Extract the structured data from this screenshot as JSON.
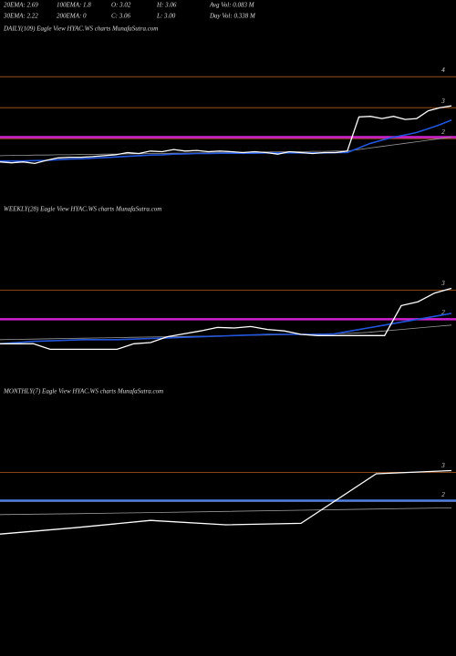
{
  "header": {
    "row1": [
      "20EMA: 2.69",
      "100EMA: 1.8",
      "O: 3.02",
      "H: 3.06",
      "Avg Vol: 0.083 M"
    ],
    "row2": [
      "30EMA: 2.22",
      "200EMA: 0",
      "C: 3.06",
      "L: 3.00",
      "Day Vol: 0.338 M"
    ]
  },
  "chart_data": [
    {
      "type": "line",
      "title": "DAILY(109) Eagle  View  HYAC.WS charts MunafaSutra.com",
      "categories": [
        null,
        null,
        null,
        null,
        null,
        null,
        null,
        null,
        null,
        null,
        null,
        null,
        null,
        null,
        null,
        null,
        null,
        null,
        null,
        null,
        null,
        null,
        null,
        null,
        null,
        null,
        null,
        null,
        null,
        null,
        null,
        null,
        null,
        null,
        null,
        null,
        null,
        null,
        null,
        null
      ],
      "ylim": [
        0,
        5.3
      ],
      "yticks": [
        4,
        3,
        2
      ],
      "grid": true,
      "grid_color": "#b05a1e",
      "hlines": [
        {
          "value": 2.05,
          "color": "#d020d0"
        }
      ],
      "series": [
        {
          "color": "#999999",
          "values": [
            1.45,
            1.46,
            1.46,
            1.47,
            1.47,
            1.48,
            1.48,
            1.49,
            1.49,
            1.5,
            1.5,
            1.51,
            1.51,
            1.52,
            1.52,
            1.53,
            1.53,
            1.54,
            1.54,
            1.55,
            1.55,
            1.56,
            1.56,
            1.57,
            1.57,
            1.58,
            1.58,
            1.59,
            1.59,
            1.6,
            1.6,
            1.65,
            1.7,
            1.75,
            1.8,
            1.85,
            1.9,
            1.95,
            2.0,
            2.05
          ]
        },
        {
          "color": "#2255dd",
          "values": [
            1.28,
            1.28,
            1.28,
            1.29,
            1.3,
            1.32,
            1.34,
            1.35,
            1.37,
            1.39,
            1.41,
            1.43,
            1.45,
            1.47,
            1.48,
            1.5,
            1.51,
            1.52,
            1.52,
            1.53,
            1.53,
            1.53,
            1.53,
            1.54,
            1.54,
            1.54,
            1.54,
            1.54,
            1.54,
            1.55,
            1.55,
            1.7,
            1.85,
            1.95,
            2.05,
            2.12,
            2.2,
            2.32,
            2.45,
            2.6
          ]
        },
        {
          "color": "#ffffff",
          "values": [
            1.25,
            1.22,
            1.25,
            1.2,
            1.3,
            1.38,
            1.4,
            1.4,
            1.42,
            1.45,
            1.48,
            1.55,
            1.52,
            1.6,
            1.58,
            1.65,
            1.6,
            1.62,
            1.58,
            1.6,
            1.58,
            1.55,
            1.58,
            1.55,
            1.5,
            1.58,
            1.55,
            1.52,
            1.55,
            1.55,
            1.6,
            2.7,
            2.72,
            2.65,
            2.72,
            2.62,
            2.65,
            2.9,
            3.0,
            3.06
          ]
        }
      ]
    },
    {
      "type": "line",
      "title": "WEEKLY(28) Eagle  View  HYAC.WS charts MunafaSutra.com",
      "categories": [
        null,
        null,
        null,
        null,
        null,
        null,
        null,
        null,
        null,
        null,
        null,
        null,
        null,
        null,
        null,
        null,
        null,
        null,
        null,
        null,
        null,
        null,
        null,
        null,
        null,
        null,
        null,
        null
      ],
      "ylim": [
        0,
        4.2
      ],
      "yticks": [
        3,
        2
      ],
      "grid": true,
      "grid_color": "#b05a1e",
      "hlines": [
        {
          "value": 2.0,
          "color": "#d020d0"
        }
      ],
      "series": [
        {
          "color": "#999999",
          "values": [
            1.3,
            1.31,
            1.32,
            1.33,
            1.34,
            1.35,
            1.36,
            1.37,
            1.38,
            1.39,
            1.4,
            1.41,
            1.42,
            1.43,
            1.44,
            1.45,
            1.46,
            1.47,
            1.48,
            1.49,
            1.5,
            1.52,
            1.55,
            1.6,
            1.65,
            1.7,
            1.75,
            1.8
          ]
        },
        {
          "color": "#2255dd",
          "values": [
            1.16,
            1.2,
            1.24,
            1.26,
            1.28,
            1.3,
            1.3,
            1.3,
            1.32,
            1.34,
            1.36,
            1.38,
            1.4,
            1.42,
            1.44,
            1.46,
            1.48,
            1.48,
            1.48,
            1.48,
            1.5,
            1.6,
            1.7,
            1.8,
            1.9,
            2.0,
            2.1,
            2.2
          ]
        },
        {
          "color": "#ffffff",
          "values": [
            1.16,
            1.16,
            1.16,
            0.97,
            0.97,
            0.97,
            0.97,
            0.97,
            1.16,
            1.2,
            1.4,
            1.5,
            1.6,
            1.72,
            1.7,
            1.75,
            1.65,
            1.6,
            1.48,
            1.44,
            1.44,
            1.44,
            1.44,
            1.44,
            2.47,
            2.6,
            2.9,
            3.06
          ]
        }
      ]
    },
    {
      "type": "line",
      "title": "MONTHLY(7) Eagle  View  HYAC.WS charts MunafaSutra.com",
      "categories": [
        null,
        null,
        null,
        null,
        null,
        null,
        null
      ],
      "ylim": [
        0,
        4.2
      ],
      "yticks": [
        3,
        2
      ],
      "grid": true,
      "grid_color": "#b05a1e",
      "hlines": [
        {
          "value": 2.03,
          "color": "#4a7fe0"
        }
      ],
      "series": [
        {
          "color": "#999999",
          "values": [
            1.55,
            1.58,
            1.62,
            1.66,
            1.7,
            1.74,
            1.78
          ]
        },
        {
          "color": "#ffffff",
          "values": [
            0.88,
            1.1,
            1.35,
            1.2,
            1.25,
            2.95,
            3.06
          ]
        }
      ]
    }
  ]
}
